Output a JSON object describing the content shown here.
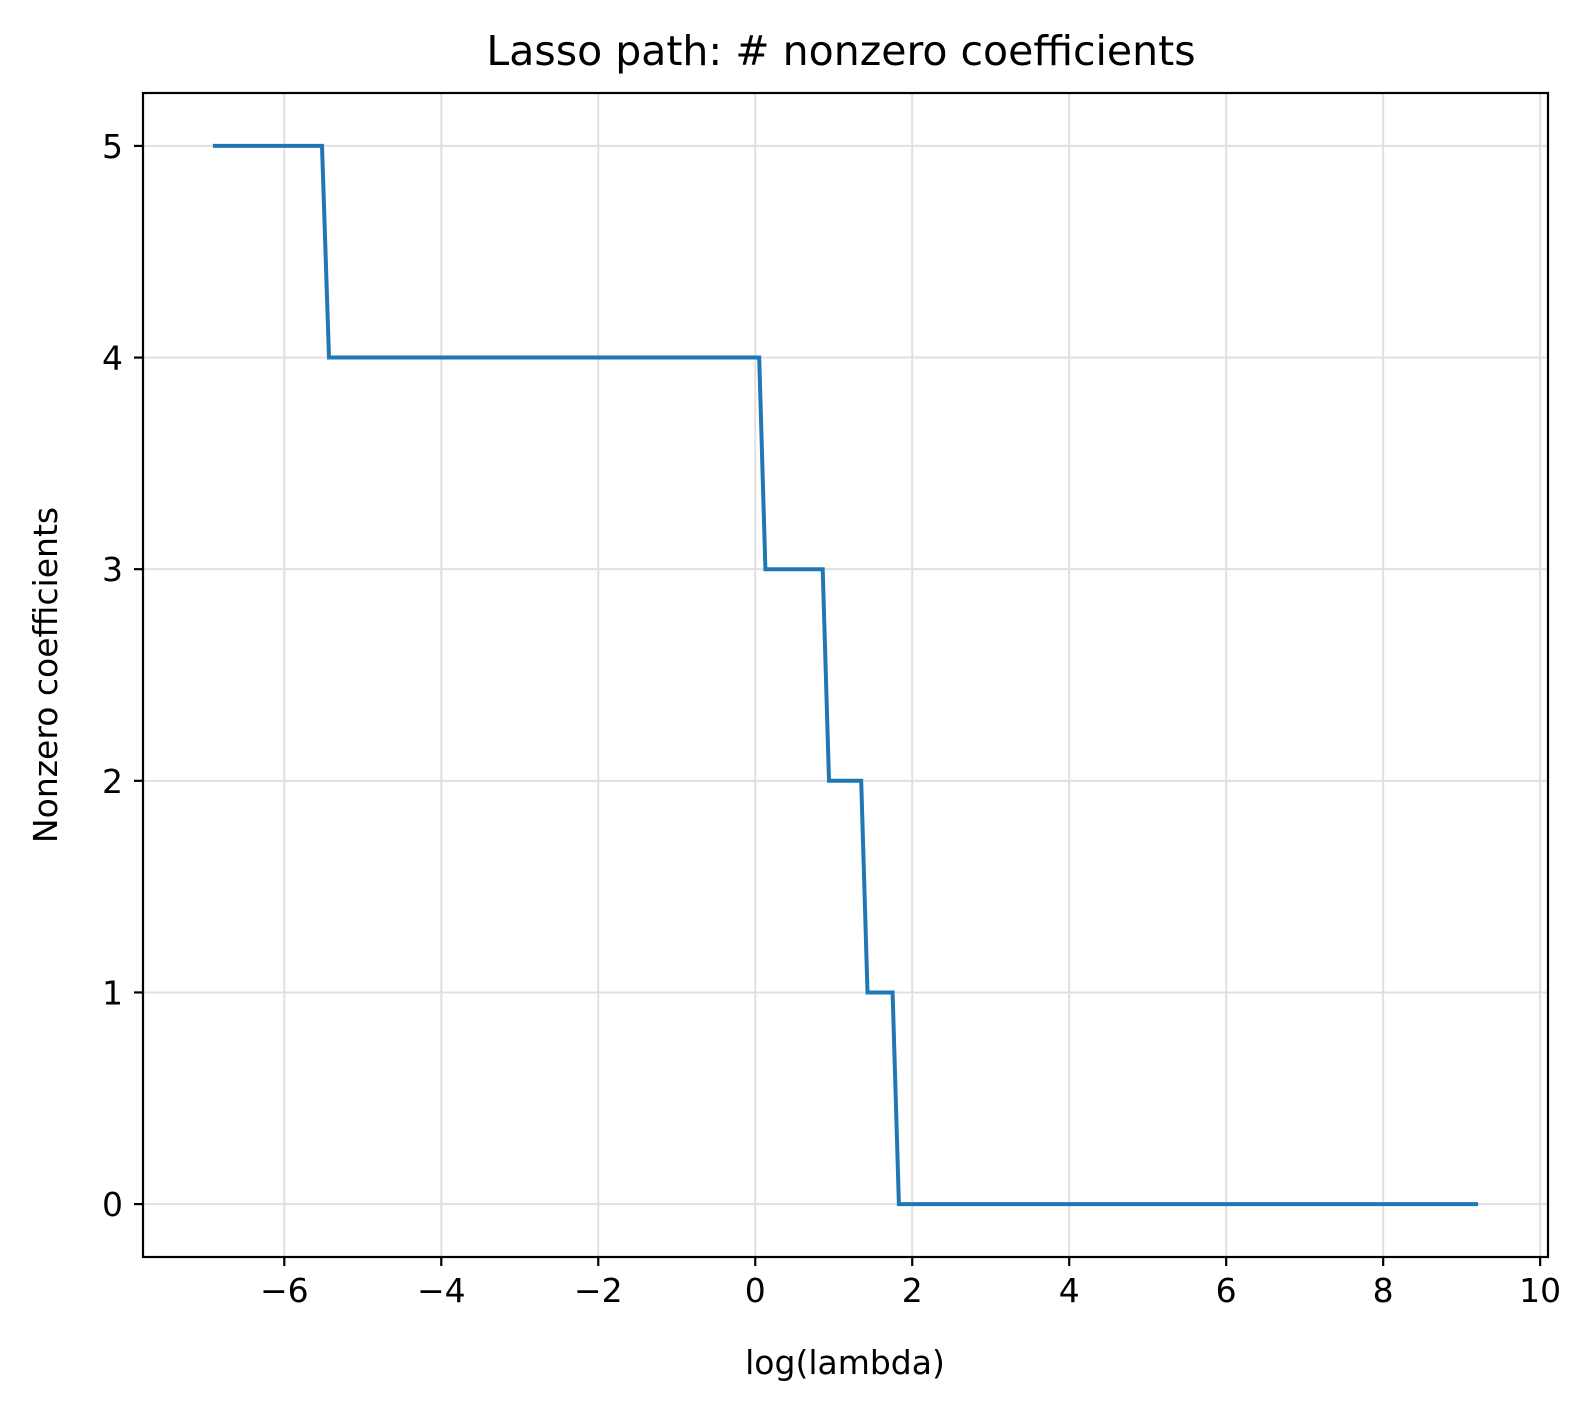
{
  "chart_data": {
    "type": "line",
    "title": "Lasso path: # nonzero coefficients",
    "xlabel": "log(lambda)",
    "ylabel": "Nonzero coefficients",
    "xlim": [
      -7.8,
      10.1
    ],
    "ylim": [
      -0.25,
      5.25
    ],
    "xticks": [
      -6,
      -4,
      -2,
      0,
      2,
      4,
      6,
      8,
      10
    ],
    "xtick_labels": [
      "−6",
      "−4",
      "−2",
      "0",
      "2",
      "4",
      "6",
      "8",
      "10"
    ],
    "yticks": [
      0,
      1,
      2,
      3,
      4,
      5
    ],
    "ytick_labels": [
      "0",
      "1",
      "2",
      "3",
      "4",
      "5"
    ],
    "grid": true,
    "series": [
      {
        "color": "#1f77b4",
        "x": [
          -6.91,
          -5.52,
          -5.43,
          0.05,
          0.13,
          0.86,
          0.94,
          1.35,
          1.43,
          1.75,
          1.83,
          9.21
        ],
        "y": [
          5,
          5,
          4,
          4,
          3,
          3,
          2,
          2,
          1,
          1,
          0,
          0
        ]
      }
    ]
  }
}
